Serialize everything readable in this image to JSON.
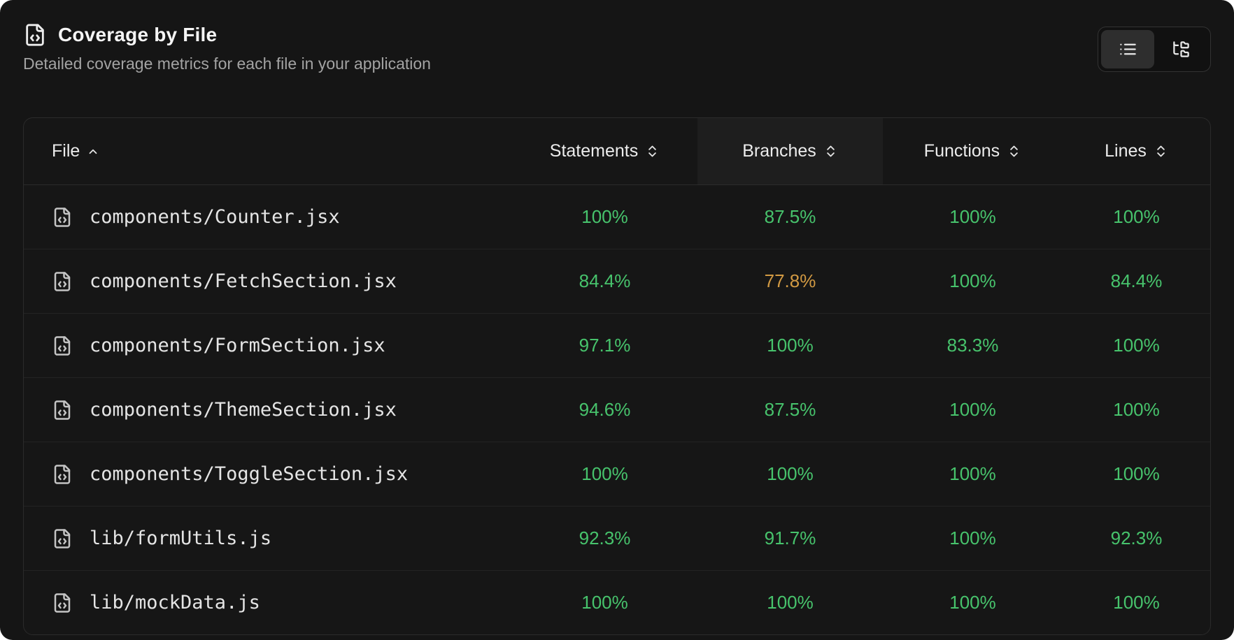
{
  "header": {
    "title": "Coverage by File",
    "subtitle": "Detailed coverage metrics for each file in your application",
    "title_icon": "file-code-icon",
    "view_toggle": {
      "options": [
        {
          "name": "list-view",
          "icon": "list-icon",
          "active": true
        },
        {
          "name": "tree-view",
          "icon": "folder-tree-icon",
          "active": false
        }
      ]
    }
  },
  "table": {
    "columns": [
      {
        "key": "file",
        "label": "File",
        "sort": "asc",
        "highlight": false
      },
      {
        "key": "statements",
        "label": "Statements",
        "sort": "both",
        "highlight": false
      },
      {
        "key": "branches",
        "label": "Branches",
        "sort": "both",
        "highlight": true
      },
      {
        "key": "functions",
        "label": "Functions",
        "sort": "both",
        "highlight": false
      },
      {
        "key": "lines",
        "label": "Lines",
        "sort": "both",
        "highlight": false
      }
    ],
    "rows": [
      {
        "file": "components/Counter.jsx",
        "statements": "100%",
        "branches": "87.5%",
        "functions": "100%",
        "lines": "100%"
      },
      {
        "file": "components/FetchSection.jsx",
        "statements": "84.4%",
        "branches": "77.8%",
        "functions": "100%",
        "lines": "84.4%"
      },
      {
        "file": "components/FormSection.jsx",
        "statements": "97.1%",
        "branches": "100%",
        "functions": "83.3%",
        "lines": "100%"
      },
      {
        "file": "components/ThemeSection.jsx",
        "statements": "94.6%",
        "branches": "87.5%",
        "functions": "100%",
        "lines": "100%"
      },
      {
        "file": "components/ToggleSection.jsx",
        "statements": "100%",
        "branches": "100%",
        "functions": "100%",
        "lines": "100%"
      },
      {
        "file": "lib/formUtils.js",
        "statements": "92.3%",
        "branches": "91.7%",
        "functions": "100%",
        "lines": "92.3%"
      },
      {
        "file": "lib/mockData.js",
        "statements": "100%",
        "branches": "100%",
        "functions": "100%",
        "lines": "100%"
      }
    ],
    "warn_threshold_percent": 80
  },
  "colors": {
    "background": "#151515",
    "card_border": "#2b2b2b",
    "good": "#47c36c",
    "warn": "#d29a43"
  }
}
